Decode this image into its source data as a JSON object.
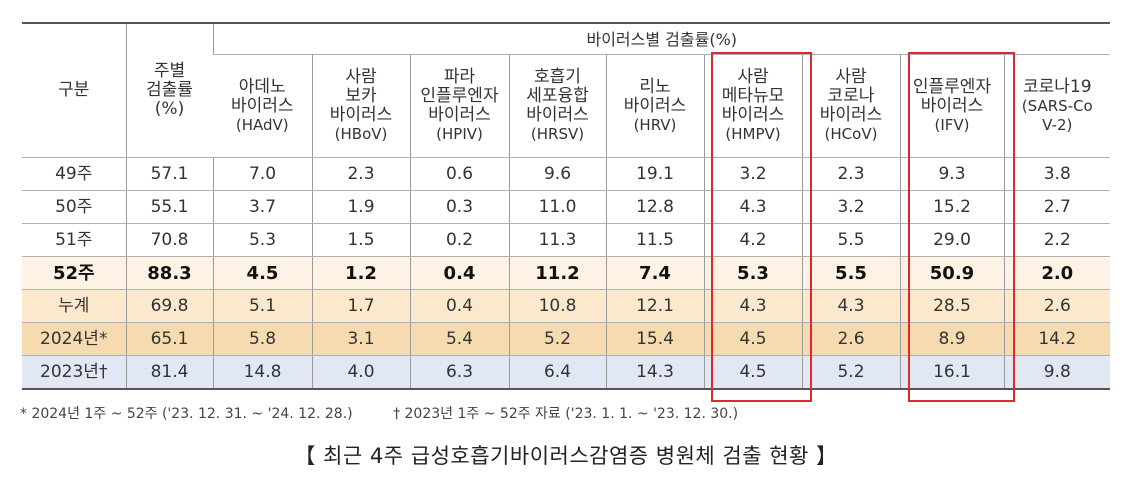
{
  "table": {
    "group_header": "바이러스별 검출률(%)",
    "row_header": "구분",
    "weekly_header": [
      "주별",
      "검출률",
      "(%)"
    ],
    "columns": [
      {
        "name_lines": [
          "아데노",
          "바이러스"
        ],
        "abbr": "(HAdV)"
      },
      {
        "name_lines": [
          "사람",
          "보카",
          "바이러스"
        ],
        "abbr": "(HBoV)"
      },
      {
        "name_lines": [
          "파라",
          "인플루엔자",
          "바이러스"
        ],
        "abbr": "(HPIV)"
      },
      {
        "name_lines": [
          "호흡기",
          "세포융합",
          "바이러스"
        ],
        "abbr": "(HRSV)"
      },
      {
        "name_lines": [
          "리노",
          "바이러스"
        ],
        "abbr": "(HRV)"
      },
      {
        "name_lines": [
          "사람",
          "메타뉴모",
          "바이러스"
        ],
        "abbr": "(HMPV)"
      },
      {
        "name_lines": [
          "사람",
          "코로나",
          "바이러스"
        ],
        "abbr": "(HCoV)"
      },
      {
        "name_lines": [
          "인플루엔자",
          "바이러스"
        ],
        "abbr": "(IFV)"
      },
      {
        "name_lines": [
          "코로나19"
        ],
        "abbr": "(SARS-CoV-2)"
      }
    ],
    "rows": [
      {
        "label": "49주",
        "weekly": "57.1",
        "values": [
          "7.0",
          "2.3",
          "0.6",
          "9.6",
          "19.1",
          "3.2",
          "2.3",
          "9.3",
          "3.8"
        ]
      },
      {
        "label": "50주",
        "weekly": "55.1",
        "values": [
          "3.7",
          "1.9",
          "0.3",
          "11.0",
          "12.8",
          "4.3",
          "3.2",
          "15.2",
          "2.7"
        ]
      },
      {
        "label": "51주",
        "weekly": "70.8",
        "values": [
          "5.3",
          "1.5",
          "0.2",
          "11.3",
          "11.5",
          "4.2",
          "5.5",
          "29.0",
          "2.2"
        ]
      },
      {
        "label": "52주",
        "weekly": "88.3",
        "values": [
          "4.5",
          "1.2",
          "0.4",
          "11.2",
          "7.4",
          "5.3",
          "5.5",
          "50.9",
          "2.0"
        ]
      },
      {
        "label": "누계",
        "weekly": "69.8",
        "values": [
          "5.1",
          "1.7",
          "0.4",
          "10.8",
          "12.1",
          "4.3",
          "4.3",
          "28.5",
          "2.6"
        ]
      },
      {
        "label": "2024년*",
        "weekly": "65.1",
        "values": [
          "5.8",
          "3.1",
          "5.4",
          "5.2",
          "15.4",
          "4.5",
          "2.6",
          "8.9",
          "14.2"
        ]
      },
      {
        "label": "2023년†",
        "weekly": "81.4",
        "values": [
          "14.8",
          "4.0",
          "6.3",
          "6.4",
          "14.3",
          "4.5",
          "5.2",
          "16.1",
          "9.8"
        ]
      }
    ]
  },
  "footnotes": {
    "note1": "* 2024년 1주 ~ 52주 ('23. 12. 31. ~ '24. 12. 28.)",
    "note2": "† 2023년 1주 ~ 52주 자료 ('23. 1. 1. ~ '23. 12. 30.)"
  },
  "caption": "【 최근 4주 급성호흡기바이러스감염증 병원체 검출 현황 】",
  "colors": {
    "highlight_border": "#e0292e",
    "week52_bg": "#fdf2e3",
    "cumulative_bg": "#fce8cc",
    "y2024_bg": "#f6dbb1",
    "y2023_bg": "#e1e8f3"
  }
}
